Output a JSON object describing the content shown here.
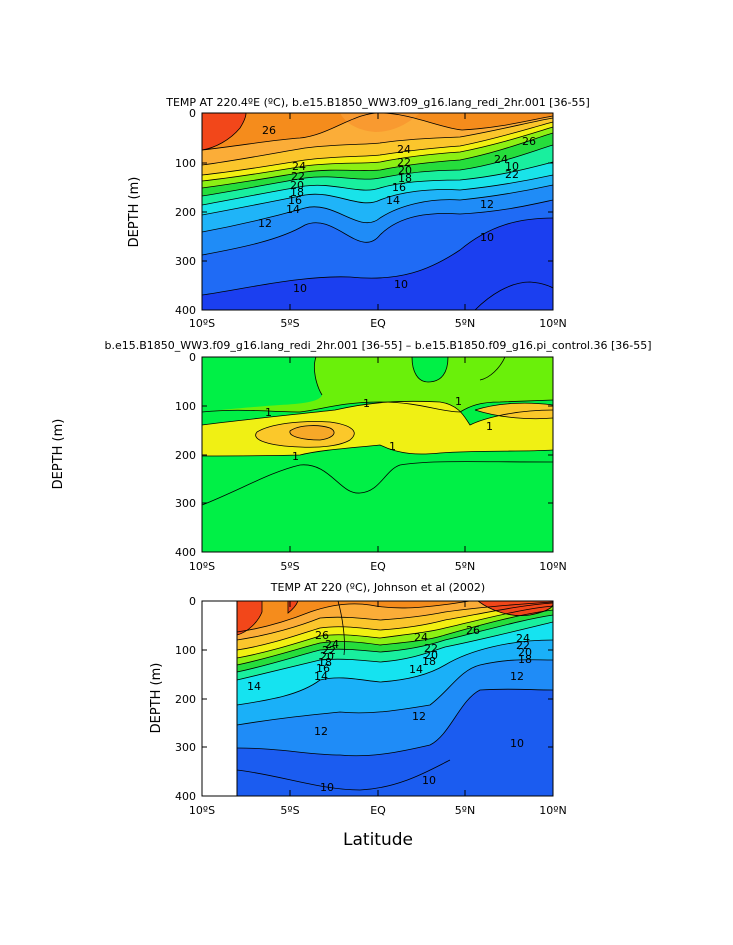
{
  "chart_data": [
    {
      "type": "contour",
      "title": "TEMP AT 220.4ºE (ºC), b.e15.B1850_WW3.f09_g16.lang_redi_2hr.001 [36-55]",
      "xlabel": "",
      "ylabel": "DEPTH (m)",
      "xlim": [
        -10,
        10
      ],
      "ylim": [
        400,
        0
      ],
      "x_ticks": [
        "10ºS",
        "5ºS",
        "EQ",
        "5ºN",
        "10ºN"
      ],
      "y_ticks": [
        "0",
        "100",
        "200",
        "300",
        "400"
      ],
      "contour_labels": [
        "26",
        "24",
        "22",
        "20",
        "18",
        "16",
        "14",
        "12",
        "10",
        "26",
        "24",
        "22",
        "20",
        "18",
        "16",
        "14",
        "12",
        "10",
        "10",
        "10",
        "22",
        "24"
      ]
    },
    {
      "type": "contour",
      "title": "b.e15.B1850_WW3.f09_g16.lang_redi_2hr.001 [36-55] – b.e15.B1850.f09_g16.pi_control.36 [36-55]",
      "xlabel": "",
      "ylabel": "DEPTH (m)",
      "xlim": [
        -10,
        10
      ],
      "ylim": [
        400,
        0
      ],
      "x_ticks": [
        "10ºS",
        "5ºS",
        "EQ",
        "5ºN",
        "10ºN"
      ],
      "y_ticks": [
        "0",
        "100",
        "200",
        "300",
        "400"
      ],
      "contour_labels": [
        "1",
        "1",
        "1",
        "1",
        "1",
        "1"
      ]
    },
    {
      "type": "contour",
      "title": "TEMP AT 220 (ºC), Johnson et al (2002)",
      "xlabel": "Latitude",
      "ylabel": "DEPTH (m)",
      "xlim": [
        -10,
        10
      ],
      "ylim": [
        400,
        0
      ],
      "x_ticks": [
        "10ºS",
        "5ºS",
        "EQ",
        "5ºN",
        "10ºN"
      ],
      "y_ticks": [
        "0",
        "100",
        "200",
        "300",
        "400"
      ],
      "contour_labels": [
        "26",
        "24",
        "22",
        "20",
        "18",
        "16",
        "14",
        "24",
        "22",
        "20",
        "18",
        "26",
        "24",
        "22",
        "20",
        "18",
        "14",
        "12",
        "12",
        "12",
        "10",
        "10",
        "10",
        "14"
      ]
    }
  ]
}
